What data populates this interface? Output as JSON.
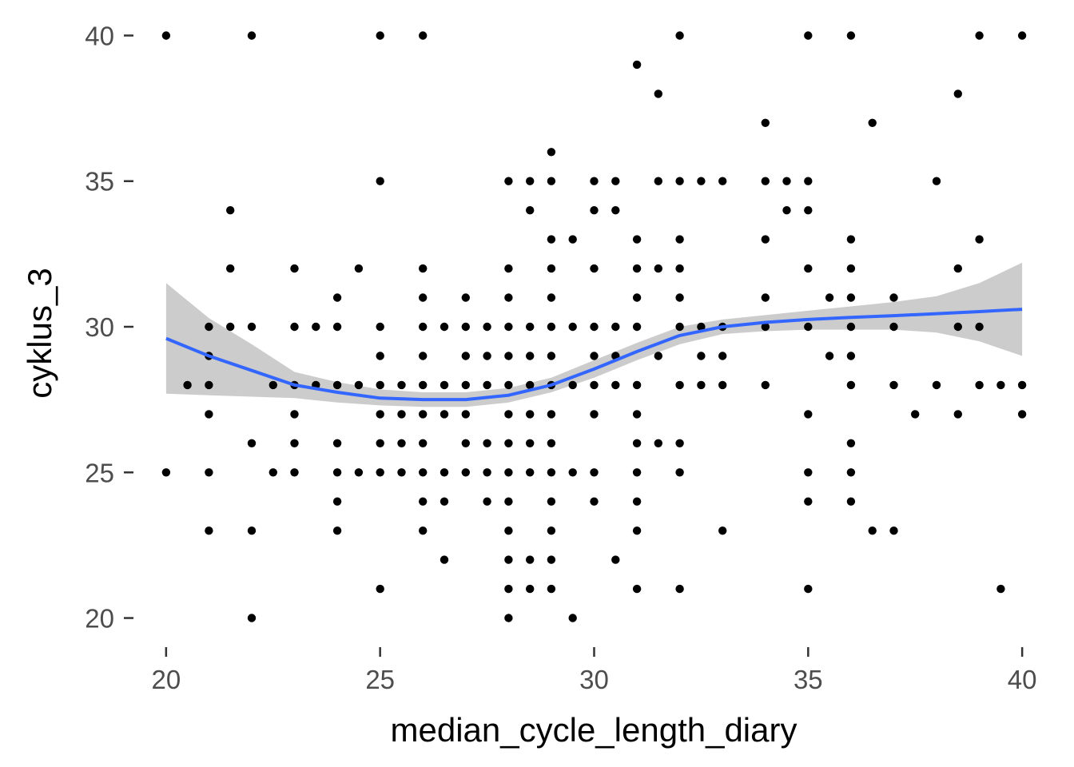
{
  "chart_data": {
    "type": "scatter",
    "xlabel": "median_cycle_length_diary",
    "ylabel": "cyklus_3",
    "xlim": [
      19.2,
      40.8
    ],
    "ylim": [
      19,
      41
    ],
    "x_ticks": [
      20,
      25,
      30,
      35,
      40
    ],
    "y_ticks": [
      20,
      25,
      30,
      35,
      40
    ],
    "x_tick_labels": [
      "20",
      "25",
      "30",
      "35",
      "40"
    ],
    "y_tick_labels": [
      "20",
      "25",
      "30",
      "35",
      "40"
    ],
    "grid": false,
    "background": "#ffffff",
    "point_color": "#000000",
    "smooth_color": "#3366ff",
    "band_color": "#cccccc",
    "points": [
      [
        20,
        40
      ],
      [
        20,
        25
      ],
      [
        20.5,
        28
      ],
      [
        21,
        30
      ],
      [
        21,
        29
      ],
      [
        21,
        28
      ],
      [
        21,
        27
      ],
      [
        21,
        25
      ],
      [
        21,
        23
      ],
      [
        21.5,
        34
      ],
      [
        21.5,
        32
      ],
      [
        21.5,
        30
      ],
      [
        22,
        40
      ],
      [
        22,
        30
      ],
      [
        22,
        26
      ],
      [
        22,
        23
      ],
      [
        22,
        20
      ],
      [
        22.5,
        28
      ],
      [
        22.5,
        25
      ],
      [
        23,
        32
      ],
      [
        23,
        30
      ],
      [
        23,
        28
      ],
      [
        23,
        27
      ],
      [
        23,
        26
      ],
      [
        23,
        25
      ],
      [
        23.5,
        30
      ],
      [
        23.5,
        28
      ],
      [
        24,
        31
      ],
      [
        24,
        30
      ],
      [
        24,
        28
      ],
      [
        24,
        26
      ],
      [
        24,
        25
      ],
      [
        24,
        24
      ],
      [
        24,
        23
      ],
      [
        24.5,
        32
      ],
      [
        24.5,
        28
      ],
      [
        24.5,
        25
      ],
      [
        25,
        40
      ],
      [
        25,
        35
      ],
      [
        25,
        30
      ],
      [
        25,
        29
      ],
      [
        25,
        28
      ],
      [
        25,
        27
      ],
      [
        25,
        26
      ],
      [
        25,
        25
      ],
      [
        25,
        21
      ],
      [
        25.5,
        28
      ],
      [
        25.5,
        27
      ],
      [
        25.5,
        26
      ],
      [
        25.5,
        25
      ],
      [
        26,
        40
      ],
      [
        26,
        32
      ],
      [
        26,
        31
      ],
      [
        26,
        30
      ],
      [
        26,
        29
      ],
      [
        26,
        28
      ],
      [
        26,
        27
      ],
      [
        26,
        26
      ],
      [
        26,
        25
      ],
      [
        26,
        24
      ],
      [
        26,
        23
      ],
      [
        26.5,
        30
      ],
      [
        26.5,
        28
      ],
      [
        26.5,
        27
      ],
      [
        26.5,
        25
      ],
      [
        26.5,
        24
      ],
      [
        26.5,
        22
      ],
      [
        27,
        31
      ],
      [
        27,
        30
      ],
      [
        27,
        29
      ],
      [
        27,
        28
      ],
      [
        27,
        27
      ],
      [
        27,
        26
      ],
      [
        27,
        25
      ],
      [
        27.5,
        30
      ],
      [
        27.5,
        29
      ],
      [
        27.5,
        28
      ],
      [
        27.5,
        26
      ],
      [
        27.5,
        25
      ],
      [
        27.5,
        24
      ],
      [
        28,
        35
      ],
      [
        28,
        32
      ],
      [
        28,
        31
      ],
      [
        28,
        30
      ],
      [
        28,
        29
      ],
      [
        28,
        28
      ],
      [
        28,
        27
      ],
      [
        28,
        26
      ],
      [
        28,
        25
      ],
      [
        28,
        24
      ],
      [
        28,
        23
      ],
      [
        28,
        22
      ],
      [
        28,
        21
      ],
      [
        28,
        20
      ],
      [
        28.5,
        35
      ],
      [
        28.5,
        34
      ],
      [
        28.5,
        30
      ],
      [
        28.5,
        29
      ],
      [
        28.5,
        28
      ],
      [
        28.5,
        27
      ],
      [
        28.5,
        26
      ],
      [
        28.5,
        25
      ],
      [
        28.5,
        22
      ],
      [
        28.5,
        21
      ],
      [
        29,
        36
      ],
      [
        29,
        35
      ],
      [
        29,
        33
      ],
      [
        29,
        32
      ],
      [
        29,
        31
      ],
      [
        29,
        30
      ],
      [
        29,
        29
      ],
      [
        29,
        28
      ],
      [
        29,
        27
      ],
      [
        29,
        26
      ],
      [
        29,
        25
      ],
      [
        29,
        24
      ],
      [
        29,
        23
      ],
      [
        29,
        22
      ],
      [
        29,
        21
      ],
      [
        29.5,
        33
      ],
      [
        29.5,
        30
      ],
      [
        29.5,
        28
      ],
      [
        29.5,
        25
      ],
      [
        29.5,
        20
      ],
      [
        30,
        35
      ],
      [
        30,
        34
      ],
      [
        30,
        32
      ],
      [
        30,
        30
      ],
      [
        30,
        29
      ],
      [
        30,
        28
      ],
      [
        30,
        27
      ],
      [
        30,
        25
      ],
      [
        30,
        24
      ],
      [
        30.5,
        35
      ],
      [
        30.5,
        34
      ],
      [
        30.5,
        30
      ],
      [
        30.5,
        29
      ],
      [
        30.5,
        28
      ],
      [
        30.5,
        22
      ],
      [
        31,
        39
      ],
      [
        31,
        33
      ],
      [
        31,
        32
      ],
      [
        31,
        31
      ],
      [
        31,
        30
      ],
      [
        31,
        28
      ],
      [
        31,
        27
      ],
      [
        31,
        26
      ],
      [
        31,
        25
      ],
      [
        31,
        24
      ],
      [
        31,
        23
      ],
      [
        31,
        21
      ],
      [
        31.5,
        38
      ],
      [
        31.5,
        35
      ],
      [
        31.5,
        32
      ],
      [
        31.5,
        29
      ],
      [
        31.5,
        26
      ],
      [
        32,
        40
      ],
      [
        32,
        35
      ],
      [
        32,
        33
      ],
      [
        32,
        32
      ],
      [
        32,
        31
      ],
      [
        32,
        30
      ],
      [
        32,
        28
      ],
      [
        32,
        26
      ],
      [
        32,
        25
      ],
      [
        32,
        21
      ],
      [
        32.5,
        35
      ],
      [
        32.5,
        30
      ],
      [
        32.5,
        29
      ],
      [
        32.5,
        28
      ],
      [
        33,
        35
      ],
      [
        33,
        30
      ],
      [
        33,
        29
      ],
      [
        33,
        28
      ],
      [
        33,
        23
      ],
      [
        34,
        37
      ],
      [
        34,
        35
      ],
      [
        34,
        33
      ],
      [
        34,
        31
      ],
      [
        34,
        30
      ],
      [
        34,
        28
      ],
      [
        34.5,
        35
      ],
      [
        34.5,
        34
      ],
      [
        35,
        40
      ],
      [
        35,
        35
      ],
      [
        35,
        34
      ],
      [
        35,
        32
      ],
      [
        35,
        30
      ],
      [
        35,
        27
      ],
      [
        35,
        25
      ],
      [
        35,
        24
      ],
      [
        35,
        21
      ],
      [
        35.5,
        31
      ],
      [
        35.5,
        29
      ],
      [
        36,
        40
      ],
      [
        36,
        33
      ],
      [
        36,
        32
      ],
      [
        36,
        31
      ],
      [
        36,
        30
      ],
      [
        36,
        29
      ],
      [
        36,
        28
      ],
      [
        36,
        26
      ],
      [
        36,
        25
      ],
      [
        36,
        24
      ],
      [
        36.5,
        37
      ],
      [
        36.5,
        23
      ],
      [
        37,
        31
      ],
      [
        37,
        30
      ],
      [
        37,
        28
      ],
      [
        37,
        23
      ],
      [
        37.5,
        27
      ],
      [
        38,
        35
      ],
      [
        38,
        28
      ],
      [
        38.5,
        38
      ],
      [
        38.5,
        32
      ],
      [
        38.5,
        30
      ],
      [
        38.5,
        27
      ],
      [
        39,
        40
      ],
      [
        39,
        33
      ],
      [
        39,
        30
      ],
      [
        39,
        28
      ],
      [
        39.5,
        28
      ],
      [
        39.5,
        21
      ],
      [
        40,
        40
      ],
      [
        40,
        28
      ],
      [
        40,
        27
      ]
    ],
    "smooth": {
      "x": [
        20,
        21,
        22,
        23,
        24,
        25,
        26,
        27,
        28,
        29,
        30,
        31,
        32,
        33,
        34,
        35,
        36,
        37,
        38,
        39,
        40
      ],
      "y": [
        29.6,
        29.0,
        28.5,
        28.0,
        27.75,
        27.55,
        27.5,
        27.5,
        27.65,
        28.0,
        28.55,
        29.15,
        29.7,
        30.0,
        30.15,
        30.25,
        30.32,
        30.38,
        30.45,
        30.52,
        30.6
      ],
      "lower": [
        27.7,
        27.65,
        27.6,
        27.55,
        27.4,
        27.3,
        27.25,
        27.25,
        27.4,
        27.75,
        28.25,
        28.85,
        29.4,
        29.75,
        29.85,
        29.9,
        29.9,
        29.9,
        29.8,
        29.5,
        29.0
      ],
      "upper": [
        31.5,
        30.3,
        29.4,
        28.45,
        28.1,
        27.85,
        27.75,
        27.75,
        27.9,
        28.25,
        28.85,
        29.45,
        30.0,
        30.25,
        30.4,
        30.55,
        30.7,
        30.85,
        31.05,
        31.5,
        32.2
      ]
    }
  }
}
